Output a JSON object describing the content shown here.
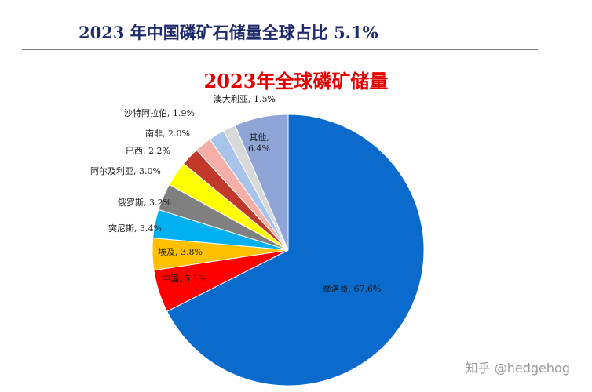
{
  "header": {
    "title": "2023 年中国磷矿石储量全球占比 5.1%"
  },
  "chart_data": {
    "type": "pie",
    "title": "2023年全球磷矿储量",
    "slices": [
      {
        "name": "摩洛哥",
        "value": 67.6,
        "label": "摩洛哥, 67.6%",
        "color": "#0a6bcc"
      },
      {
        "name": "中国",
        "value": 5.1,
        "label": "中国, 5.1%",
        "color": "#ff0000"
      },
      {
        "name": "埃及",
        "value": 3.8,
        "label": "埃及, 3.8%",
        "color": "#ffc000"
      },
      {
        "name": "突尼斯",
        "value": 3.4,
        "label": "突尼斯, 3.4%",
        "color": "#00b0f0"
      },
      {
        "name": "俄罗斯",
        "value": 3.2,
        "label": "俄罗斯, 3.2%",
        "color": "#808080"
      },
      {
        "name": "阿尔及利亚",
        "value": 3.0,
        "label": "阿尔及利亚, 3.0%",
        "color": "#ffff00"
      },
      {
        "name": "巴西",
        "value": 2.2,
        "label": "巴西, 2.2%",
        "color": "#c0392b"
      },
      {
        "name": "南非",
        "value": 2.0,
        "label": "南非, 2.0%",
        "color": "#f4b0a8"
      },
      {
        "name": "沙特阿拉伯",
        "value": 1.9,
        "label": "沙特阿拉伯, 1.9%",
        "color": "#a9c4eb"
      },
      {
        "name": "澳大利亚",
        "value": 1.5,
        "label": "澳大利亚, 1.5%",
        "color": "#d9d9d9"
      },
      {
        "name": "其他",
        "value": 6.4,
        "label": "其他,\n6.4%",
        "color": "#8fa5d6"
      }
    ]
  },
  "watermark": "知乎 @hedgehog"
}
